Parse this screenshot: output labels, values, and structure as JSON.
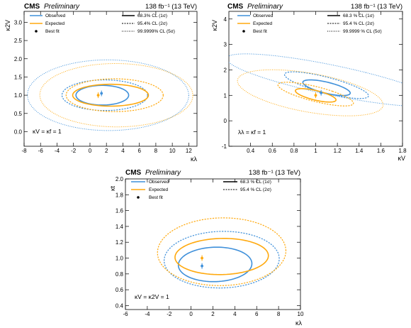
{
  "colors": {
    "observed": "#3f90da",
    "expected": "#ffa90e",
    "axis": "#000000"
  },
  "chart_data": [
    {
      "type": "line",
      "id": "kl-k2v",
      "experiment": "CMS",
      "status": "Preliminary",
      "lumi": "138 fb⁻¹ (13 TeV)",
      "xlabel": "κλ",
      "ylabel": "κ2V",
      "xlim": [
        -8,
        13
      ],
      "ylim": [
        -0.4,
        3.3
      ],
      "xticks": [
        "-8",
        "-6",
        "-4",
        "-2",
        "0",
        "2",
        "4",
        "6",
        "8",
        "10",
        "12"
      ],
      "yticks": [
        "0.0",
        "0.5",
        "1.0",
        "1.5",
        "2.0",
        "2.5",
        "3.0"
      ],
      "condition": "κV = κf = 1",
      "legend": {
        "colors": [
          "Observed",
          "Expected",
          "Best fit"
        ],
        "styles": [
          "68.3% CL (1σ)",
          "95.4% CL (2σ)",
          "99.9999% CL (5σ)"
        ]
      },
      "contours": [
        {
          "series": "Observed",
          "cl": "1σ",
          "cx": 1.5,
          "cy": 1.0,
          "rx": 3.2,
          "ry": 0.27,
          "rot": 0
        },
        {
          "series": "Observed",
          "cl": "2σ",
          "cx": 1.8,
          "cy": 1.0,
          "rx": 5.2,
          "ry": 0.42,
          "rot": -0.02
        },
        {
          "series": "Observed",
          "cl": "5σ",
          "cx": 2.2,
          "cy": 1.0,
          "rx": 9.8,
          "ry": 0.97,
          "rot": -0.03
        },
        {
          "series": "Expected",
          "cl": "1σ",
          "cx": 2.5,
          "cy": 1.0,
          "rx": 4.6,
          "ry": 0.3,
          "rot": 0
        },
        {
          "series": "Expected",
          "cl": "2σ",
          "cx": 3.0,
          "cy": 1.0,
          "rx": 5.9,
          "ry": 0.45,
          "rot": -0.02
        },
        {
          "series": "Expected",
          "cl": "5σ",
          "cx": 3.2,
          "cy": 1.0,
          "rx": 9.3,
          "ry": 0.87,
          "rot": -0.04
        }
      ],
      "best_fit": [
        {
          "series": "Observed",
          "x": 1.4,
          "y": 1.05
        },
        {
          "series": "Expected",
          "x": 1.0,
          "y": 1.0
        }
      ]
    },
    {
      "type": "line",
      "id": "kv-k2v",
      "experiment": "CMS",
      "status": "Preliminary",
      "lumi": "138 fb⁻¹ (13 TeV)",
      "xlabel": "κV",
      "ylabel": "κ2V",
      "xlim": [
        0.2,
        1.8
      ],
      "ylim": [
        -1,
        4.3
      ],
      "xticks": [
        "0.4",
        "0.6",
        "0.8",
        "1",
        "1.2",
        "1.4",
        "1.6",
        "1.8"
      ],
      "yticks": [
        "-1",
        "0",
        "1",
        "2",
        "3",
        "4"
      ],
      "condition": "λλ = κf = 1",
      "legend": {
        "colors": [
          "Observed",
          "Expected",
          "Best fit"
        ],
        "styles": [
          "68.3 % CL (1σ)",
          "95.4 % CL (2σ)",
          "99.9999 % CL (5σ)"
        ]
      },
      "contours": [
        {
          "series": "Observed",
          "cl": "1σ",
          "cx": 1.1,
          "cy": 1.3,
          "rx": 0.14,
          "ry": 0.35,
          "rot": 0.55
        },
        {
          "series": "Observed",
          "cl": "2σ",
          "cx": 1.1,
          "cy": 1.4,
          "rx": 0.2,
          "ry": 0.62,
          "rot": 0.6
        },
        {
          "series": "Observed",
          "cl": "5σ",
          "cx": 1.15,
          "cy": 1.6,
          "rx": 0.43,
          "ry": 1.35,
          "rot": 0.75
        },
        {
          "series": "Expected",
          "cl": "1σ",
          "cx": 1.0,
          "cy": 1.0,
          "rx": 0.12,
          "ry": 0.3,
          "rot": 0.55
        },
        {
          "series": "Expected",
          "cl": "2σ",
          "cx": 1.0,
          "cy": 1.05,
          "rx": 0.19,
          "ry": 0.55,
          "rot": 0.6
        },
        {
          "series": "Expected",
          "cl": "5σ",
          "cx": 0.95,
          "cy": 1.1,
          "rx": 0.52,
          "ry": 1.0,
          "rot": 0.52
        }
      ],
      "best_fit": [
        {
          "series": "Observed",
          "x": 1.05,
          "y": 1.1
        },
        {
          "series": "Expected",
          "x": 1.0,
          "y": 1.0
        }
      ]
    },
    {
      "type": "line",
      "id": "kl-kt",
      "experiment": "CMS",
      "status": "Preliminary",
      "lumi": "138 fb⁻¹ (13 TeV)",
      "xlabel": "κλ",
      "ylabel": "κt",
      "xlim": [
        -6,
        10
      ],
      "ylim": [
        0.35,
        2.0
      ],
      "xticks": [
        "-6",
        "-4",
        "-2",
        "0",
        "2",
        "4",
        "6",
        "8",
        "10"
      ],
      "yticks": [
        "0.4",
        "0.6",
        "0.8",
        "1.0",
        "1.2",
        "1.4",
        "1.6",
        "1.8",
        "2.0"
      ],
      "condition": "κV = κ2V = 1",
      "legend": {
        "colors": [
          "Observed",
          "Expected",
          "Best fit"
        ],
        "styles": [
          "68.3 % CL (1σ)",
          "95.4 % CL (2σ)"
        ]
      },
      "contours": [
        {
          "series": "Observed",
          "cl": "1σ",
          "cx": 2.2,
          "cy": 0.92,
          "rx": 3.4,
          "ry": 0.22,
          "rot": 0.15
        },
        {
          "series": "Observed",
          "cl": "2σ",
          "cx": 2.8,
          "cy": 0.98,
          "rx": 5.3,
          "ry": 0.36,
          "rot": 0.12
        },
        {
          "series": "Expected",
          "cl": "1σ",
          "cx": 2.8,
          "cy": 1.02,
          "rx": 4.3,
          "ry": 0.23,
          "rot": 0.12
        },
        {
          "series": "Expected",
          "cl": "2σ",
          "cx": 2.8,
          "cy": 1.08,
          "rx": 5.9,
          "ry": 0.43,
          "rot": 0.1
        }
      ],
      "best_fit": [
        {
          "series": "Observed",
          "x": 1.0,
          "y": 0.9
        },
        {
          "series": "Expected",
          "x": 1.0,
          "y": 1.0
        }
      ]
    }
  ]
}
